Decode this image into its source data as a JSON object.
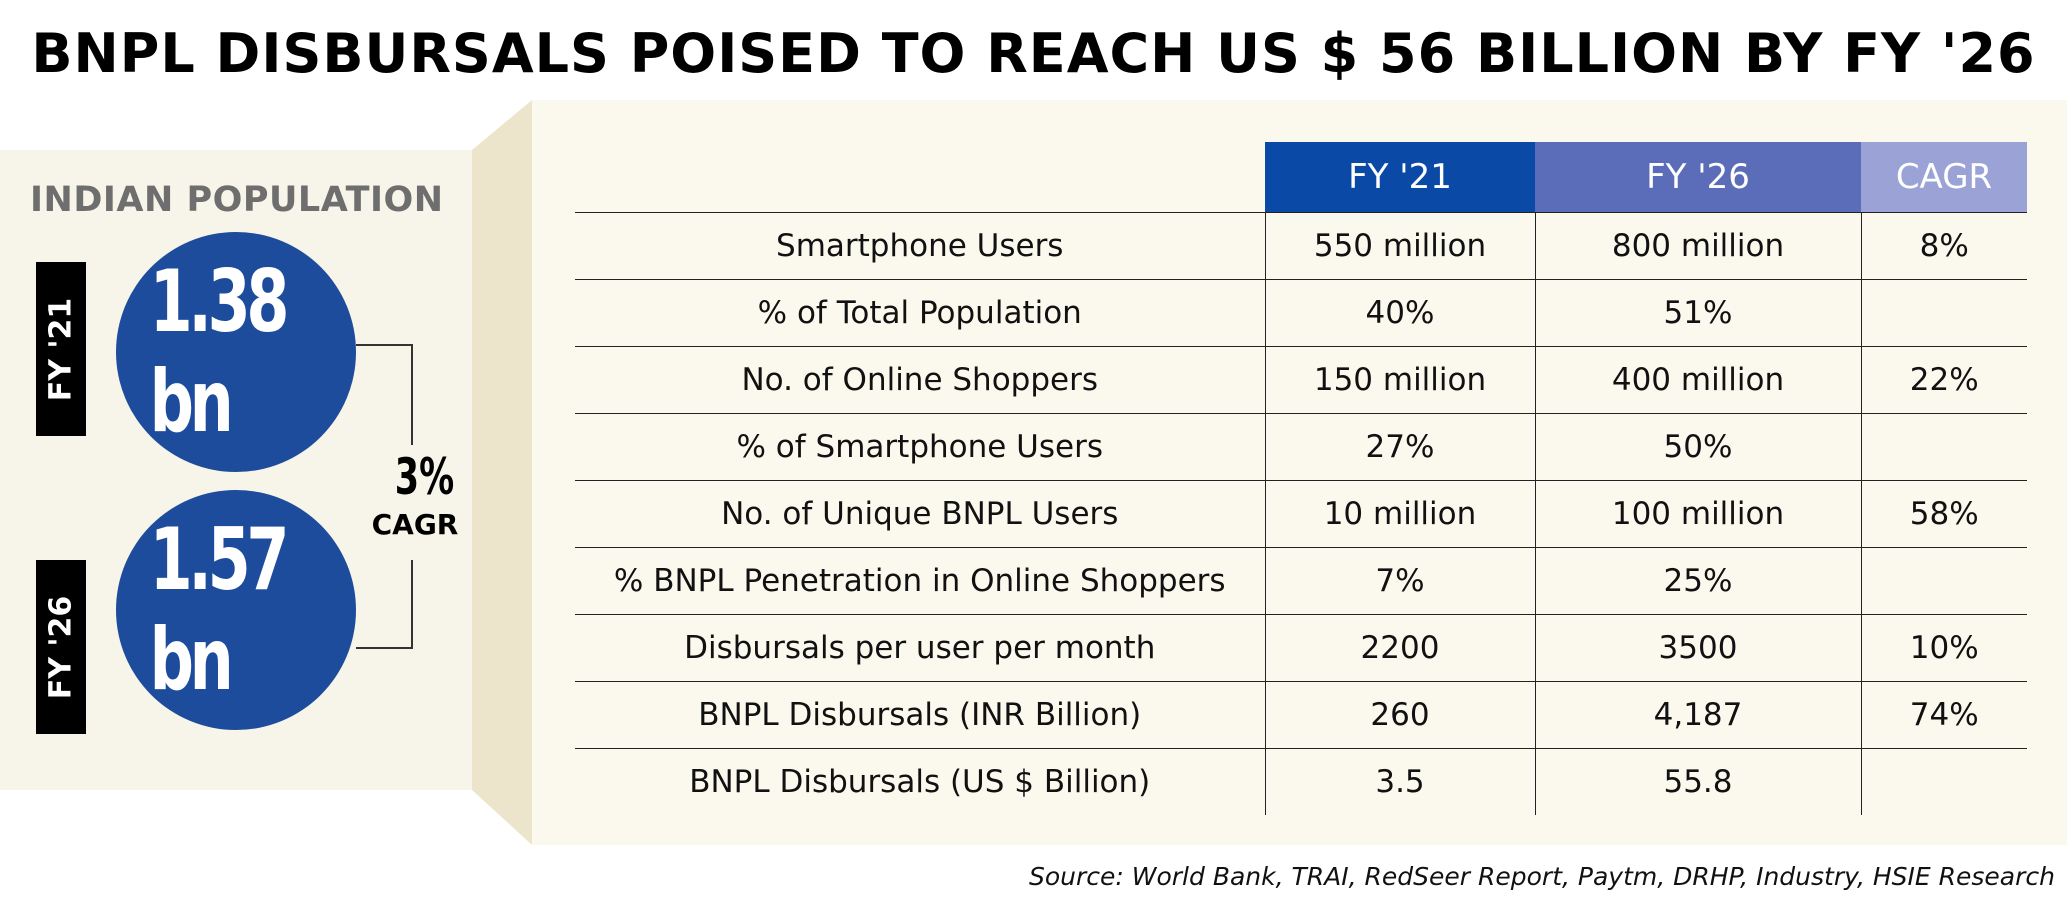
{
  "title": "BNPL DISBURSALS POISED TO REACH US $ 56 BILLION BY FY '26",
  "population": {
    "heading": "INDIAN POPULATION",
    "fy21_label": "FY '21",
    "fy21_value": "1.38 bn",
    "fy26_label": "FY '26",
    "fy26_value": "1.57 bn",
    "cagr_value": "3%",
    "cagr_label": "CAGR"
  },
  "colors": {
    "circle": "#1e4c9c",
    "header_fy21": "#0a4aa6",
    "header_fy26": "#5b6db8",
    "header_cagr": "#9ba3d6",
    "panel": "#fbf8ee"
  },
  "chart_data": {
    "type": "table",
    "columns": [
      "",
      "FY '21",
      "FY '26",
      "CAGR"
    ],
    "rows": [
      [
        "Smartphone Users",
        "550 million",
        "800 million",
        "8%"
      ],
      [
        "% of Total Population",
        "40%",
        "51%",
        ""
      ],
      [
        "No. of Online Shoppers",
        "150 million",
        "400 million",
        "22%"
      ],
      [
        "% of Smartphone Users",
        "27%",
        "50%",
        ""
      ],
      [
        "No. of Unique BNPL Users",
        "10 million",
        "100 million",
        "58%"
      ],
      [
        "% BNPL Penetration in Online Shoppers",
        "7%",
        "25%",
        ""
      ],
      [
        "Disbursals per user per month",
        "2200",
        "3500",
        "10%"
      ],
      [
        "BNPL Disbursals (INR Billion)",
        "260",
        "4,187",
        "74%"
      ],
      [
        "BNPL Disbursals (US $ Billion)",
        "3.5",
        "55.8",
        ""
      ]
    ]
  },
  "source": "Source: World Bank, TRAI, RedSeer Report, Paytm, DRHP, Industry, HSIE Research"
}
